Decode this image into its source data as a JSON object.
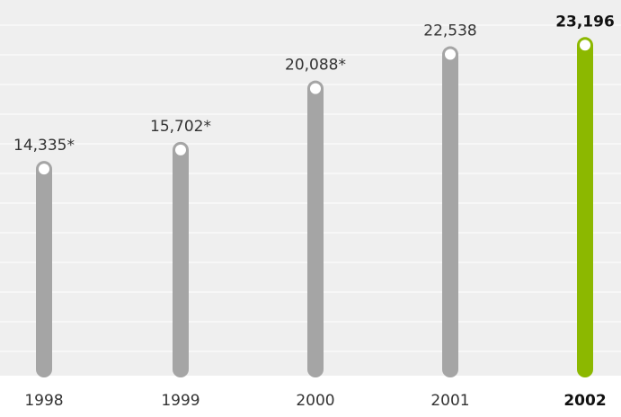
{
  "colors": {
    "plot_background": "#efefef",
    "grid_line": "#ffffff",
    "bar_default": "#a5a5a5",
    "bar_highlight": "#8cb800",
    "marker_fill": "#ffffff"
  },
  "chart_data": {
    "type": "bar",
    "title": "",
    "xlabel": "",
    "ylabel": "",
    "ylim": [
      0,
      25000
    ],
    "grid": true,
    "categories": [
      "1998",
      "1999",
      "2000",
      "2001",
      "2002"
    ],
    "values": [
      14335,
      15702,
      20088,
      22538,
      23196
    ],
    "value_labels": [
      "14,335*",
      "15,702*",
      "20,088*",
      "22,538",
      "23,196"
    ],
    "highlight_category": "2002"
  }
}
